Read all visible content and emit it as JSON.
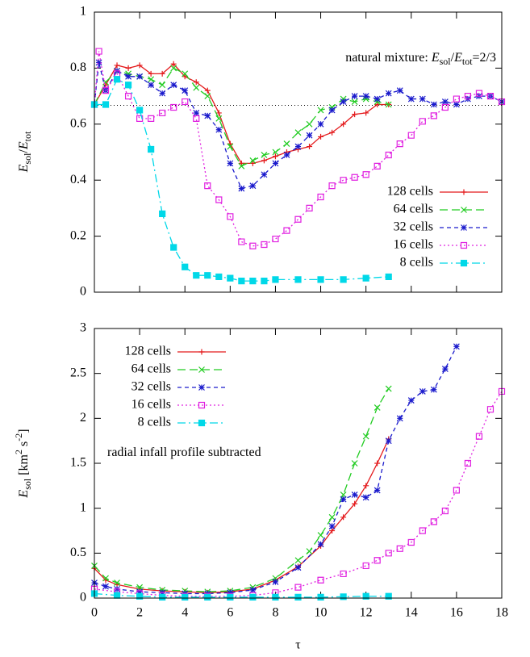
{
  "chart_data": [
    {
      "type": "line",
      "ylabel": [
        {
          "text": "E",
          "italic": true
        },
        {
          "text": "sol",
          "sub": true
        },
        {
          "text": "/"
        },
        {
          "text": "E",
          "italic": true
        },
        {
          "text": "tot",
          "sub": true
        }
      ],
      "annotation": [
        {
          "text": "natural mixture: "
        },
        {
          "text": "E",
          "italic": true
        },
        {
          "text": "sol",
          "sub": true
        },
        {
          "text": "/"
        },
        {
          "text": "E",
          "italic": true
        },
        {
          "text": "tot",
          "sub": true
        },
        {
          "text": "=2/3"
        }
      ],
      "hline": 0.667,
      "xlim": [
        0,
        18
      ],
      "xticks": [
        0,
        2,
        4,
        6,
        8,
        10,
        12,
        14,
        16,
        18
      ],
      "show_xtick_labels": false,
      "ylim": [
        0,
        1
      ],
      "yticks": [
        0,
        0.2,
        0.4,
        0.6,
        0.8,
        1
      ],
      "legend": "lower right",
      "series": [
        {
          "name": "128 cells",
          "color": "#e41a1c",
          "dash": "solid",
          "marker": "plus",
          "x": [
            0,
            0.5,
            1,
            1.5,
            2,
            2.5,
            3,
            3.5,
            4,
            4.5,
            5,
            5.5,
            6,
            6.5,
            7,
            7.5,
            8,
            8.5,
            9,
            9.5,
            10,
            10.5,
            11,
            11.5,
            12,
            12.5,
            13
          ],
          "values": [
            0.67,
            0.74,
            0.81,
            0.8,
            0.81,
            0.78,
            0.78,
            0.815,
            0.77,
            0.75,
            0.72,
            0.64,
            0.53,
            0.46,
            0.46,
            0.47,
            0.485,
            0.5,
            0.51,
            0.52,
            0.555,
            0.57,
            0.6,
            0.635,
            0.64,
            0.67,
            0.67
          ]
        },
        {
          "name": "64 cells",
          "color": "#22cc22",
          "dash": "dashed",
          "marker": "cross",
          "x": [
            0,
            0.5,
            1,
            1.5,
            2,
            2.5,
            3,
            3.5,
            4,
            4.5,
            5,
            5.5,
            6,
            6.5,
            7,
            7.5,
            8,
            8.5,
            9,
            9.5,
            10,
            10.5,
            11,
            11.5,
            12,
            12.5,
            13
          ],
          "values": [
            0.67,
            0.75,
            0.79,
            0.78,
            0.77,
            0.76,
            0.74,
            0.8,
            0.78,
            0.73,
            0.7,
            0.62,
            0.52,
            0.45,
            0.47,
            0.49,
            0.5,
            0.53,
            0.57,
            0.6,
            0.65,
            0.66,
            0.69,
            0.68,
            0.69,
            0.68,
            0.67
          ]
        },
        {
          "name": "32 cells",
          "color": "#1a1acc",
          "dash": "short",
          "marker": "star",
          "x": [
            0,
            0.2,
            0.5,
            1,
            1.5,
            2,
            2.5,
            3,
            3.5,
            4,
            4.5,
            5,
            5.5,
            6,
            6.5,
            7,
            7.5,
            8,
            8.5,
            9,
            9.5,
            10,
            10.5,
            11,
            11.5,
            12,
            12.5,
            13,
            13.5,
            14,
            14.5,
            15,
            15.5,
            16,
            16.5,
            17,
            17.5,
            18
          ],
          "values": [
            0.67,
            0.82,
            0.72,
            0.79,
            0.77,
            0.77,
            0.74,
            0.71,
            0.74,
            0.72,
            0.64,
            0.63,
            0.58,
            0.46,
            0.37,
            0.38,
            0.42,
            0.46,
            0.49,
            0.52,
            0.56,
            0.6,
            0.65,
            0.68,
            0.7,
            0.7,
            0.69,
            0.71,
            0.72,
            0.69,
            0.69,
            0.67,
            0.68,
            0.67,
            0.69,
            0.7,
            0.7,
            0.68
          ]
        },
        {
          "name": "16 cells",
          "color": "#e020e0",
          "dash": "dotted",
          "marker": "open-square",
          "x": [
            0,
            0.2,
            0.5,
            1,
            1.5,
            2,
            2.5,
            3,
            3.5,
            4,
            4.5,
            5,
            5.5,
            6,
            6.5,
            7,
            7.5,
            8,
            8.5,
            9,
            9.5,
            10,
            10.5,
            11,
            11.5,
            12,
            12.5,
            13,
            13.5,
            14,
            14.5,
            15,
            15.5,
            16,
            16.5,
            17,
            17.5,
            18
          ],
          "values": [
            0.67,
            0.86,
            0.72,
            0.78,
            0.7,
            0.62,
            0.62,
            0.64,
            0.66,
            0.68,
            0.62,
            0.38,
            0.33,
            0.27,
            0.18,
            0.165,
            0.17,
            0.19,
            0.22,
            0.26,
            0.3,
            0.34,
            0.38,
            0.4,
            0.41,
            0.42,
            0.45,
            0.49,
            0.53,
            0.56,
            0.61,
            0.63,
            0.66,
            0.69,
            0.7,
            0.71,
            0.7,
            0.68
          ]
        },
        {
          "name": "8 cells",
          "color": "#00d8e8",
          "dash": "dashdot",
          "marker": "square",
          "x": [
            0,
            0.5,
            1,
            1.5,
            2,
            2.5,
            3,
            3.5,
            4,
            4.5,
            5,
            5.5,
            6,
            6.5,
            7,
            7.5,
            8,
            9,
            10,
            11,
            12,
            13
          ],
          "values": [
            0.67,
            0.67,
            0.76,
            0.74,
            0.65,
            0.51,
            0.28,
            0.16,
            0.09,
            0.06,
            0.06,
            0.055,
            0.05,
            0.04,
            0.04,
            0.04,
            0.045,
            0.045,
            0.045,
            0.045,
            0.05,
            0.055
          ]
        }
      ]
    },
    {
      "type": "line",
      "ylabel": [
        {
          "text": "E",
          "italic": true
        },
        {
          "text": "sol",
          "sub": true
        },
        {
          "text": " [km"
        },
        {
          "text": "2",
          "sup": true
        },
        {
          "text": " s"
        },
        {
          "text": "-2",
          "sup": true
        },
        {
          "text": "]"
        }
      ],
      "annotation": [
        {
          "text": "radial infall profile subtracted"
        }
      ],
      "xlabel": "τ",
      "xlim": [
        0,
        18
      ],
      "xticks": [
        0,
        2,
        4,
        6,
        8,
        10,
        12,
        14,
        16,
        18
      ],
      "show_xtick_labels": true,
      "ylim": [
        0,
        3
      ],
      "yticks": [
        0,
        0.5,
        1,
        1.5,
        2,
        2.5,
        3
      ],
      "legend": "upper left",
      "series": [
        {
          "name": "128 cells",
          "color": "#e41a1c",
          "dash": "solid",
          "marker": "plus",
          "x": [
            0,
            0.5,
            1,
            2,
            3,
            4,
            5,
            6,
            7,
            8,
            9,
            10,
            10.5,
            11,
            11.5,
            12,
            12.5,
            13
          ],
          "values": [
            0.33,
            0.2,
            0.15,
            0.1,
            0.08,
            0.07,
            0.06,
            0.07,
            0.1,
            0.2,
            0.35,
            0.58,
            0.75,
            0.9,
            1.05,
            1.25,
            1.5,
            1.77
          ]
        },
        {
          "name": "64 cells",
          "color": "#22cc22",
          "dash": "dashed",
          "marker": "cross",
          "x": [
            0,
            0.5,
            1,
            2,
            3,
            4,
            5,
            6,
            7,
            8,
            9,
            9.5,
            10,
            10.5,
            11,
            11.5,
            12,
            12.5,
            13
          ],
          "values": [
            0.36,
            0.22,
            0.17,
            0.12,
            0.09,
            0.08,
            0.07,
            0.08,
            0.12,
            0.22,
            0.42,
            0.52,
            0.7,
            0.9,
            1.15,
            1.5,
            1.8,
            2.12,
            2.33
          ]
        },
        {
          "name": "32 cells",
          "color": "#1a1acc",
          "dash": "short",
          "marker": "star",
          "x": [
            0,
            0.5,
            1,
            2,
            3,
            4,
            5,
            6,
            7,
            8,
            9,
            10,
            10.5,
            11,
            11.5,
            12,
            12.5,
            13,
            13.5,
            14,
            14.5,
            15,
            15.5,
            16
          ],
          "values": [
            0.17,
            0.13,
            0.1,
            0.07,
            0.06,
            0.05,
            0.05,
            0.06,
            0.09,
            0.18,
            0.34,
            0.6,
            0.8,
            1.1,
            1.15,
            1.12,
            1.2,
            1.75,
            2.0,
            2.2,
            2.3,
            2.32,
            2.55,
            2.8
          ]
        },
        {
          "name": "16 cells",
          "color": "#e020e0",
          "dash": "dotted",
          "marker": "open-square",
          "x": [
            0,
            1,
            2,
            3,
            4,
            5,
            6,
            7,
            8,
            9,
            10,
            11,
            12,
            12.5,
            13,
            13.5,
            14,
            14.5,
            15,
            15.5,
            16,
            16.5,
            17,
            17.5,
            18
          ],
          "values": [
            0.1,
            0.07,
            0.05,
            0.03,
            0.02,
            0.02,
            0.02,
            0.03,
            0.06,
            0.12,
            0.2,
            0.27,
            0.36,
            0.42,
            0.5,
            0.55,
            0.62,
            0.75,
            0.85,
            0.97,
            1.2,
            1.5,
            1.8,
            2.1,
            2.3
          ]
        },
        {
          "name": "8 cells",
          "color": "#00d8e8",
          "dash": "dashdot",
          "marker": "square",
          "x": [
            0,
            1,
            2,
            3,
            4,
            5,
            6,
            7,
            8,
            9,
            10,
            11,
            12,
            13
          ],
          "values": [
            0.05,
            0.03,
            0.02,
            0.01,
            0.01,
            0.01,
            0.01,
            0.01,
            0.01,
            0.01,
            0.01,
            0.015,
            0.02,
            0.02
          ]
        }
      ]
    }
  ]
}
